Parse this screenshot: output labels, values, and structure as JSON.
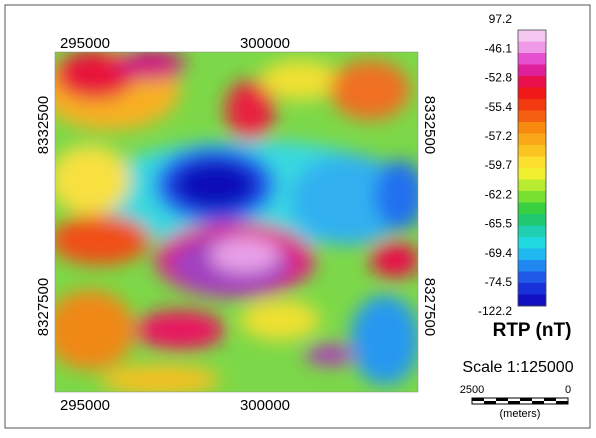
{
  "map": {
    "x_labels": [
      "295000",
      "300000"
    ],
    "y_labels": [
      "8332500",
      "8327500"
    ],
    "legend": {
      "labels": [
        "97.2",
        "-46.1",
        "-52.8",
        "-55.4",
        "-57.2",
        "-59.7",
        "-62.2",
        "-65.5",
        "-69.4",
        "-74.5",
        "-122.2"
      ],
      "colors": [
        "#f4c8f0",
        "#ee9ae6",
        "#e64fd0",
        "#e0209a",
        "#e8104a",
        "#f01818",
        "#f23a10",
        "#f56010",
        "#f88a10",
        "#f8a818",
        "#fcc420",
        "#fce030",
        "#f0f030",
        "#b8ec30",
        "#78e030",
        "#38d040",
        "#20c870",
        "#20d0b0",
        "#20d8e0",
        "#20b8f0",
        "#2088f0",
        "#2058e8",
        "#1830d8",
        "#1010c0"
      ],
      "title": "RTP (nT)"
    },
    "scale": {
      "text": "Scale 1:125000",
      "left": "2500",
      "right": "0",
      "unit": "(meters)"
    }
  }
}
